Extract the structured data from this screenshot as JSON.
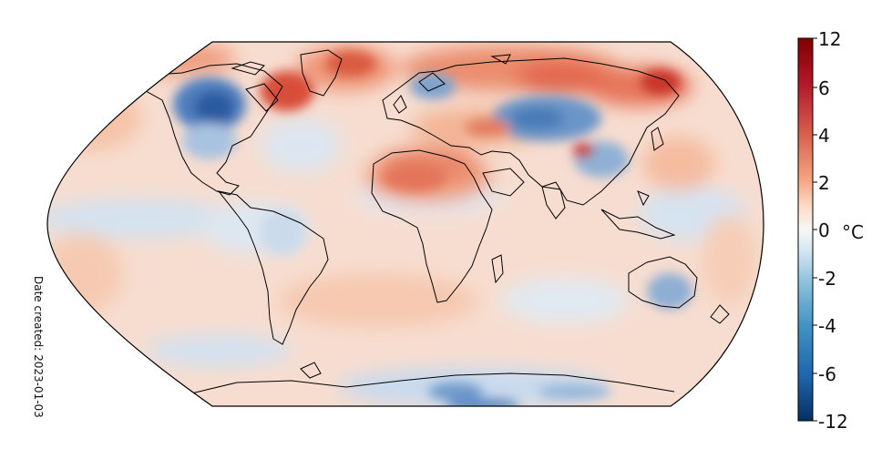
{
  "map": {
    "date_created": "Date created: 2023-01-03",
    "colorbar": {
      "unit": "°C",
      "ticks": [
        "12",
        "6",
        "4",
        "2",
        "0",
        "-2",
        "-4",
        "-6",
        "-12"
      ],
      "gradient": [
        "#7f0000",
        "#b2182b",
        "#d6604d",
        "#f4a582",
        "#fddbc7",
        "#f7f7f7",
        "#d1e5f0",
        "#92c5de",
        "#4393c3",
        "#2166ac",
        "#053061"
      ]
    },
    "colors": {
      "warm": "#f8cdb4",
      "warm_strong": "#d6604d",
      "warm_extreme": "#b2182b",
      "cool": "#c7d9ec",
      "cool_strong": "#2166ac",
      "neutral": "#f5efea",
      "coast": "#000000"
    }
  }
}
